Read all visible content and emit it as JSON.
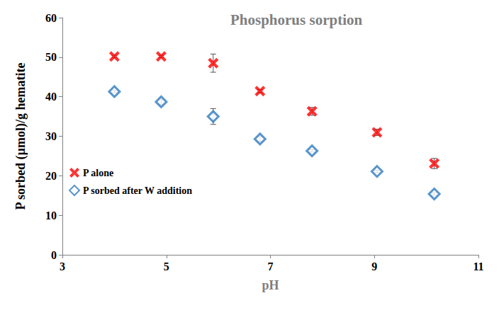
{
  "chart_data": {
    "type": "scatter",
    "title": "Phosphorus sorption",
    "x_label": "pH",
    "y_label": "P sorbed (µmol)/g hematite",
    "x": [
      4.0,
      4.9,
      5.9,
      6.8,
      7.8,
      9.05,
      10.15
    ],
    "series": [
      {
        "name": "P alone",
        "color": "#ff0000",
        "marker": "x",
        "values": [
          50.2,
          50.2,
          48.5,
          41.4,
          36.3,
          31.0,
          23.1
        ],
        "errors": [
          0.3,
          0.3,
          2.3,
          0.4,
          1.0,
          0.8,
          1.3
        ]
      },
      {
        "name": "P sorbed after W addition",
        "color": "#2f7bbf",
        "marker": "diamond",
        "values": [
          41.3,
          38.7,
          35.0,
          29.3,
          26.3,
          21.1,
          15.4
        ],
        "errors": [
          0.3,
          0.6,
          2.0,
          0.6,
          0.3,
          0.3,
          0.3
        ]
      }
    ],
    "xlim": [
      3,
      11
    ],
    "xticks": [
      3,
      5,
      7,
      9,
      11
    ],
    "ylim": [
      0,
      60
    ],
    "yticks": [
      0,
      10,
      20,
      30,
      40,
      50,
      60
    ],
    "grid": false,
    "legend": "left"
  }
}
